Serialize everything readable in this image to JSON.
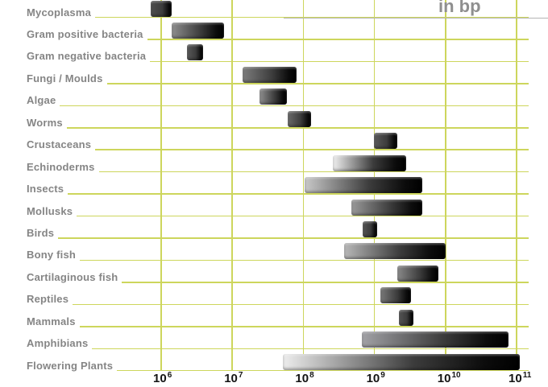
{
  "subtitle": {
    "text": "in bp"
  },
  "colors": {
    "gridline": "#cdd65c",
    "category_label": "#858585",
    "subtitle_text": "#8f8f8f",
    "axis_tick_text": "#141414",
    "bar_dark_end": "#000000",
    "background": "#ffffff"
  },
  "chart_data": {
    "type": "bar",
    "orientation": "horizontal-range",
    "x_scale": "log10",
    "x_unit": "bp",
    "subtitle": "in bp",
    "grid": "on",
    "x_ticks": [
      {
        "base": "10",
        "exp": "6"
      },
      {
        "base": "10",
        "exp": "7"
      },
      {
        "base": "10",
        "exp": "8"
      },
      {
        "base": "10",
        "exp": "9"
      },
      {
        "base": "10",
        "exp": "10"
      },
      {
        "base": "10",
        "exp": "11"
      }
    ],
    "categories": [
      {
        "label": "Mycoplasma",
        "min_bp": 720000,
        "max_bp": 1400000,
        "start_color": "#4f4f4f"
      },
      {
        "label": "Gram positive bacteria",
        "min_bp": 1400000,
        "max_bp": 7700000,
        "start_color": "#8e8e8e"
      },
      {
        "label": "Gram negative bacteria",
        "min_bp": 2300000,
        "max_bp": 3900000,
        "start_color": "#5a5a5a"
      },
      {
        "label": "Fungi / Moulds",
        "min_bp": 14000000,
        "max_bp": 81000000,
        "start_color": "#7d7d7d"
      },
      {
        "label": "Algae",
        "min_bp": 24000000,
        "max_bp": 59000000,
        "start_color": "#909090"
      },
      {
        "label": "Worms",
        "min_bp": 61000000,
        "max_bp": 130000000,
        "start_color": "#6a6a6a"
      },
      {
        "label": "Crustaceans",
        "min_bp": 980000000,
        "max_bp": 2100000000,
        "start_color": "#5a5a5a"
      },
      {
        "label": "Echinoderms",
        "min_bp": 260000000,
        "max_bp": 2800000000,
        "start_color": "#f0f0f0"
      },
      {
        "label": "Insects",
        "min_bp": 105000000,
        "max_bp": 4700000000,
        "start_color": "#c9c9c9"
      },
      {
        "label": "Mollusks",
        "min_bp": 480000000,
        "max_bp": 4700000000,
        "start_color": "#9a9a9a"
      },
      {
        "label": "Birds",
        "min_bp": 690000000,
        "max_bp": 1100000000,
        "start_color": "#555555"
      },
      {
        "label": "Bony fish",
        "min_bp": 370000000,
        "max_bp": 10000000000,
        "start_color": "#b8b8b8"
      },
      {
        "label": "Cartilaginous fish",
        "min_bp": 2100000000,
        "max_bp": 7900000000,
        "start_color": "#8a8a8a"
      },
      {
        "label": "Reptiles",
        "min_bp": 1200000000,
        "max_bp": 3300000000,
        "start_color": "#7a7a7a"
      },
      {
        "label": "Mammals",
        "min_bp": 2200000000,
        "max_bp": 3500000000,
        "start_color": "#555555"
      },
      {
        "label": "Amphibians",
        "min_bp": 660000000,
        "max_bp": 78000000000,
        "start_color": "#a2a2a6"
      },
      {
        "label": "Flowering Plants",
        "min_bp": 51000000,
        "max_bp": 110000000000,
        "start_color": "#ededed"
      }
    ]
  }
}
